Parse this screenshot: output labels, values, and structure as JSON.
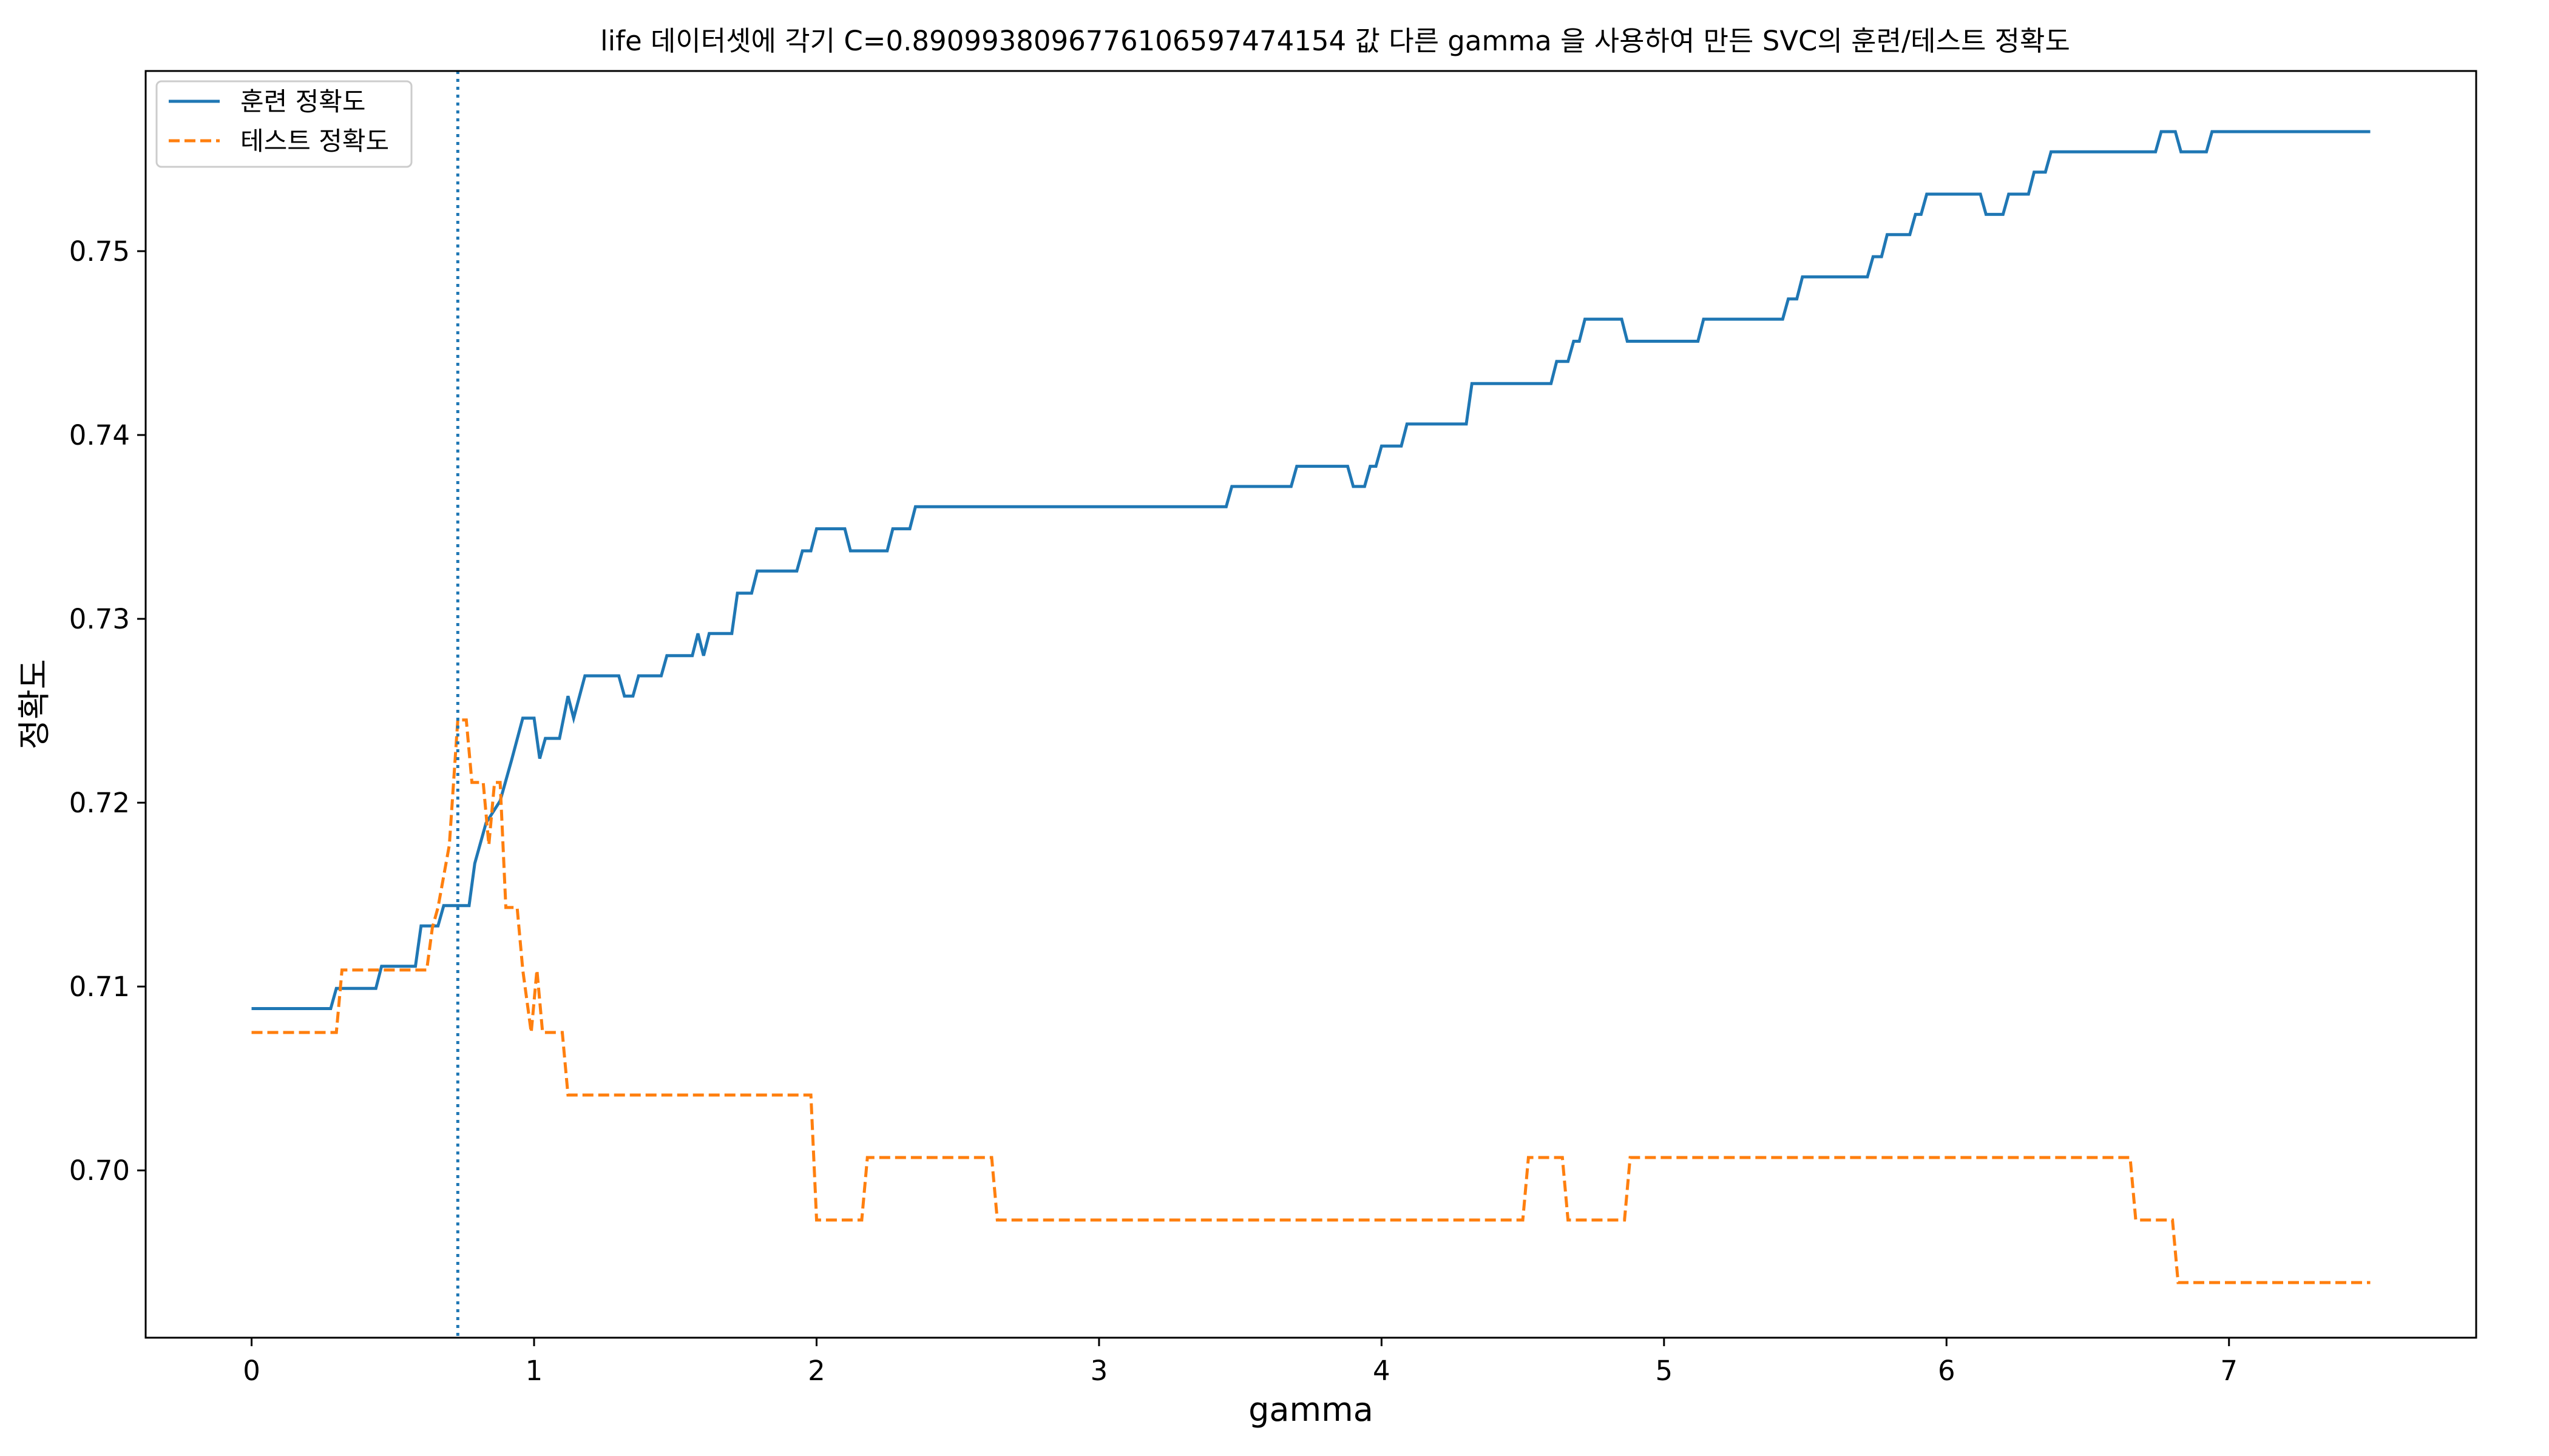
{
  "chart_data": {
    "type": "line",
    "title": "life 데이터셋에 각기 C=0.8909938096776106597474154 값 다른 gamma 을 사용하여 만든 SVC의 훈련/테스트 정확도",
    "xlabel": "gamma",
    "ylabel": "정확도",
    "xlim": [
      -0.375,
      7.875
    ],
    "ylim": [
      0.6909,
      0.7598
    ],
    "xticks": [
      0,
      1,
      2,
      3,
      4,
      5,
      6,
      7
    ],
    "yticks": [
      0.7,
      0.71,
      0.72,
      0.73,
      0.74,
      0.75
    ],
    "ytick_labels": [
      "0.70",
      "0.71",
      "0.72",
      "0.73",
      "0.74",
      "0.75"
    ],
    "grid": false,
    "legend_position": "top-left",
    "vline": {
      "x": 0.73,
      "color": "#1f77b4",
      "style": "dotted"
    },
    "series": [
      {
        "name": "훈련 정확도",
        "color": "#1f77b4",
        "style": "solid",
        "points": [
          [
            0.0,
            0.7088
          ],
          [
            0.28,
            0.7088
          ],
          [
            0.3,
            0.7099
          ],
          [
            0.44,
            0.7099
          ],
          [
            0.46,
            0.7111
          ],
          [
            0.58,
            0.7111
          ],
          [
            0.6,
            0.7133
          ],
          [
            0.66,
            0.7133
          ],
          [
            0.68,
            0.7144
          ],
          [
            0.77,
            0.7144
          ],
          [
            0.79,
            0.7167
          ],
          [
            0.83,
            0.7189
          ],
          [
            0.88,
            0.7201
          ],
          [
            0.92,
            0.7223
          ],
          [
            0.96,
            0.7246
          ],
          [
            1.0,
            0.7246
          ],
          [
            1.02,
            0.7224
          ],
          [
            1.04,
            0.7235
          ],
          [
            1.09,
            0.7235
          ],
          [
            1.12,
            0.7258
          ],
          [
            1.14,
            0.7246
          ],
          [
            1.18,
            0.7269
          ],
          [
            1.3,
            0.7269
          ],
          [
            1.32,
            0.7258
          ],
          [
            1.35,
            0.7258
          ],
          [
            1.37,
            0.7269
          ],
          [
            1.45,
            0.7269
          ],
          [
            1.47,
            0.728
          ],
          [
            1.56,
            0.728
          ],
          [
            1.58,
            0.7292
          ],
          [
            1.6,
            0.728
          ],
          [
            1.62,
            0.7292
          ],
          [
            1.7,
            0.7292
          ],
          [
            1.72,
            0.7314
          ],
          [
            1.77,
            0.7314
          ],
          [
            1.79,
            0.7326
          ],
          [
            1.93,
            0.7326
          ],
          [
            1.95,
            0.7337
          ],
          [
            1.98,
            0.7337
          ],
          [
            2.0,
            0.7349
          ],
          [
            2.1,
            0.7349
          ],
          [
            2.12,
            0.7337
          ],
          [
            2.25,
            0.7337
          ],
          [
            2.27,
            0.7349
          ],
          [
            2.33,
            0.7349
          ],
          [
            2.35,
            0.7361
          ],
          [
            3.45,
            0.7361
          ],
          [
            3.47,
            0.7372
          ],
          [
            3.68,
            0.7372
          ],
          [
            3.7,
            0.7383
          ],
          [
            3.88,
            0.7383
          ],
          [
            3.9,
            0.7372
          ],
          [
            3.94,
            0.7372
          ],
          [
            3.96,
            0.7383
          ],
          [
            3.98,
            0.7383
          ],
          [
            4.0,
            0.7394
          ],
          [
            4.07,
            0.7394
          ],
          [
            4.09,
            0.7406
          ],
          [
            4.3,
            0.7406
          ],
          [
            4.32,
            0.7428
          ],
          [
            4.6,
            0.7428
          ],
          [
            4.62,
            0.744
          ],
          [
            4.66,
            0.744
          ],
          [
            4.68,
            0.7451
          ],
          [
            4.7,
            0.7451
          ],
          [
            4.72,
            0.7463
          ],
          [
            4.85,
            0.7463
          ],
          [
            4.87,
            0.7451
          ],
          [
            5.12,
            0.7451
          ],
          [
            5.14,
            0.7463
          ],
          [
            5.42,
            0.7463
          ],
          [
            5.44,
            0.7474
          ],
          [
            5.47,
            0.7474
          ],
          [
            5.49,
            0.7486
          ],
          [
            5.72,
            0.7486
          ],
          [
            5.74,
            0.7497
          ],
          [
            5.77,
            0.7497
          ],
          [
            5.79,
            0.7509
          ],
          [
            5.87,
            0.7509
          ],
          [
            5.89,
            0.752
          ],
          [
            5.91,
            0.752
          ],
          [
            5.93,
            0.7531
          ],
          [
            6.12,
            0.7531
          ],
          [
            6.14,
            0.752
          ],
          [
            6.2,
            0.752
          ],
          [
            6.22,
            0.7531
          ],
          [
            6.29,
            0.7531
          ],
          [
            6.31,
            0.7543
          ],
          [
            6.35,
            0.7543
          ],
          [
            6.37,
            0.7554
          ],
          [
            6.74,
            0.7554
          ],
          [
            6.76,
            0.7565
          ],
          [
            6.81,
            0.7565
          ],
          [
            6.83,
            0.7554
          ],
          [
            6.92,
            0.7554
          ],
          [
            6.94,
            0.7565
          ],
          [
            7.5,
            0.7565
          ]
        ]
      },
      {
        "name": "테스트 정확도",
        "color": "#ff7f0e",
        "style": "dashed",
        "points": [
          [
            0.0,
            0.7075
          ],
          [
            0.3,
            0.7075
          ],
          [
            0.32,
            0.7109
          ],
          [
            0.62,
            0.7109
          ],
          [
            0.64,
            0.7132
          ],
          [
            0.66,
            0.7143
          ],
          [
            0.7,
            0.7177
          ],
          [
            0.73,
            0.7245
          ],
          [
            0.76,
            0.7245
          ],
          [
            0.78,
            0.7211
          ],
          [
            0.82,
            0.7211
          ],
          [
            0.84,
            0.7177
          ],
          [
            0.86,
            0.7211
          ],
          [
            0.88,
            0.7211
          ],
          [
            0.9,
            0.7143
          ],
          [
            0.94,
            0.7143
          ],
          [
            0.96,
            0.7109
          ],
          [
            0.99,
            0.7075
          ],
          [
            1.01,
            0.7109
          ],
          [
            1.03,
            0.7075
          ],
          [
            1.1,
            0.7075
          ],
          [
            1.12,
            0.7041
          ],
          [
            1.98,
            0.7041
          ],
          [
            2.0,
            0.6973
          ],
          [
            2.16,
            0.6973
          ],
          [
            2.18,
            0.7007
          ],
          [
            2.62,
            0.7007
          ],
          [
            2.64,
            0.6973
          ],
          [
            4.5,
            0.6973
          ],
          [
            4.52,
            0.7007
          ],
          [
            4.64,
            0.7007
          ],
          [
            4.66,
            0.6973
          ],
          [
            4.86,
            0.6973
          ],
          [
            4.88,
            0.7007
          ],
          [
            6.65,
            0.7007
          ],
          [
            6.67,
            0.6973
          ],
          [
            6.8,
            0.6973
          ],
          [
            6.82,
            0.6939
          ],
          [
            7.5,
            0.6939
          ]
        ]
      }
    ]
  }
}
